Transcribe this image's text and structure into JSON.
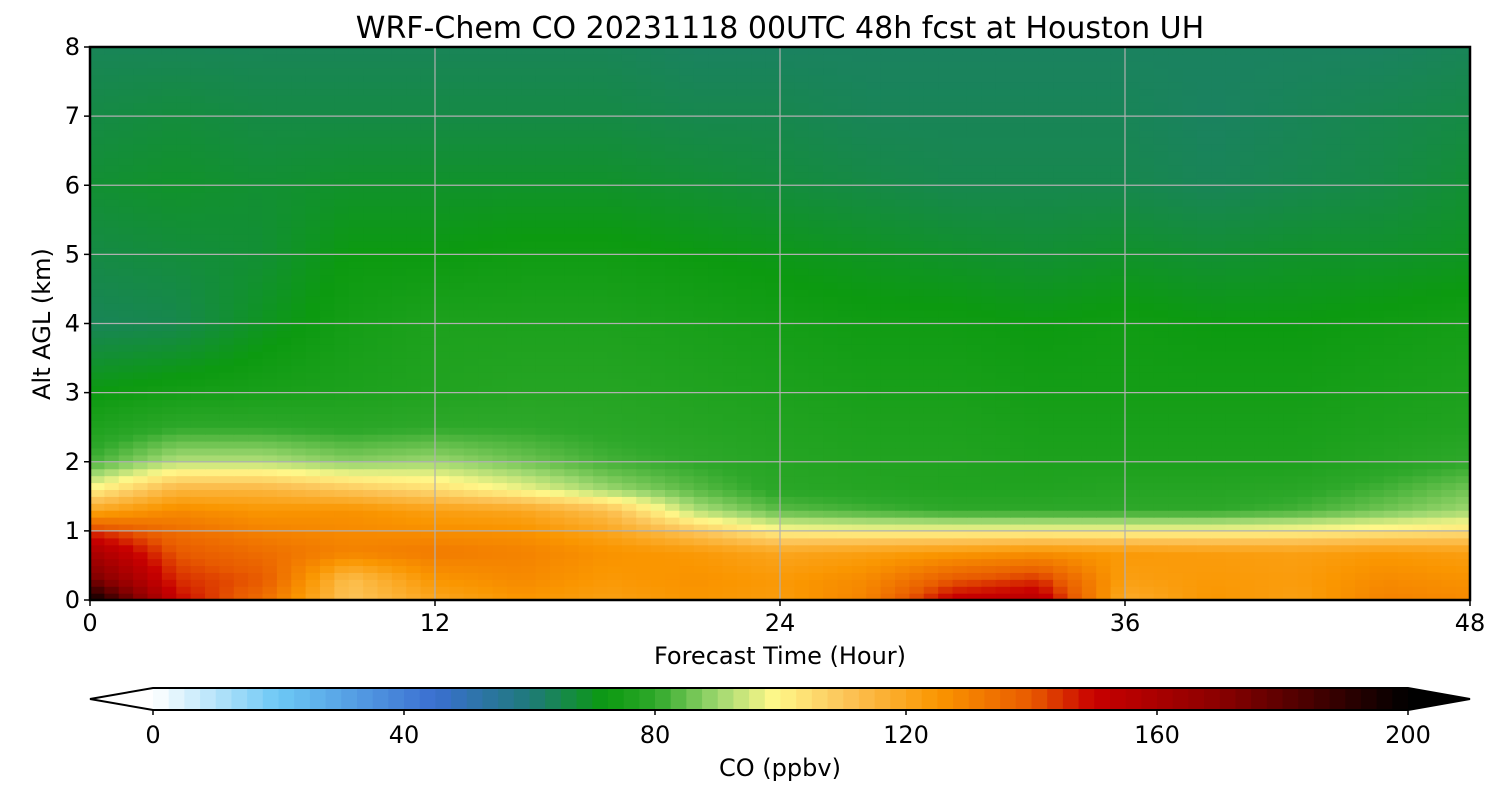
{
  "chart_data": {
    "type": "heatmap",
    "title": "WRF-Chem CO  20231118 00UTC 48h fcst at Houston UH",
    "xlabel": "Forecast Time (Hour)",
    "ylabel": "Alt AGL (km)",
    "xlim": [
      0,
      48
    ],
    "ylim": [
      0,
      8
    ],
    "xticks": [
      0,
      12,
      24,
      36,
      48
    ],
    "yticks": [
      0,
      1,
      2,
      3,
      4,
      5,
      6,
      7,
      8
    ],
    "grid": true,
    "x": [
      0,
      3,
      6,
      9,
      12,
      15,
      18,
      21,
      24,
      27,
      30,
      33,
      36,
      39,
      42,
      45,
      48
    ],
    "y": [
      0,
      0.3,
      0.7,
      1.0,
      1.3,
      1.6,
      2.0,
      2.5,
      3.0,
      4.0,
      5.0,
      6.0,
      7.0,
      8.0
    ],
    "z_ppbv": [
      [
        200,
        150,
        135,
        110,
        120,
        125,
        122,
        125,
        123,
        130,
        152,
        155,
        118,
        125,
        122,
        130,
        128
      ],
      [
        175,
        145,
        140,
        112,
        125,
        128,
        124,
        126,
        124,
        128,
        140,
        145,
        122,
        124,
        123,
        128,
        126
      ],
      [
        160,
        140,
        135,
        130,
        132,
        130,
        126,
        124,
        120,
        122,
        124,
        126,
        124,
        123,
        122,
        124,
        122
      ],
      [
        145,
        135,
        130,
        128,
        127,
        126,
        120,
        110,
        100,
        99,
        99,
        99,
        99,
        99,
        100,
        102,
        104
      ],
      [
        120,
        128,
        125,
        126,
        122,
        120,
        112,
        92,
        84,
        82,
        80,
        80,
        80,
        80,
        82,
        86,
        90
      ],
      [
        100,
        115,
        115,
        110,
        105,
        98,
        90,
        84,
        79,
        78,
        77,
        77,
        78,
        78,
        79,
        82,
        86
      ],
      [
        82,
        92,
        92,
        88,
        90,
        86,
        82,
        80,
        78,
        77,
        77,
        76,
        76,
        76,
        76,
        78,
        80
      ],
      [
        76,
        80,
        80,
        79,
        80,
        80,
        79,
        78,
        77,
        76,
        76,
        75,
        75,
        75,
        75,
        76,
        77
      ],
      [
        72,
        74,
        75,
        76,
        77,
        78,
        78,
        77,
        76,
        75,
        75,
        74,
        74,
        74,
        74,
        75,
        76
      ],
      [
        64,
        65,
        70,
        74,
        76,
        76,
        76,
        75,
        74,
        73,
        73,
        72,
        73,
        72,
        72,
        73,
        74
      ],
      [
        66,
        67,
        68,
        72,
        72,
        73,
        73,
        72,
        71,
        70,
        69,
        68,
        69,
        68,
        69,
        69,
        70
      ],
      [
        68,
        69,
        68,
        69,
        69,
        69,
        69,
        68,
        67,
        66,
        65,
        65,
        65,
        64,
        65,
        66,
        68
      ],
      [
        66,
        67,
        66,
        66,
        66,
        66,
        66,
        65,
        65,
        64,
        64,
        64,
        64,
        63,
        64,
        65,
        66
      ],
      [
        64,
        64,
        64,
        64,
        64,
        64,
        64,
        63,
        63,
        63,
        63,
        63,
        63,
        63,
        63,
        63,
        64
      ]
    ],
    "colorbar": {
      "label": "CO  (ppbv)",
      "min": 0,
      "max": 200,
      "ticks": [
        0,
        40,
        80,
        120,
        160,
        200
      ],
      "extend": "both",
      "stops": [
        {
          "v": 0,
          "c": "#ffffff"
        },
        {
          "v": 20,
          "c": "#6cc8f5"
        },
        {
          "v": 45,
          "c": "#3a6fd0"
        },
        {
          "v": 60,
          "c": "#1f7a7a"
        },
        {
          "v": 72,
          "c": "#0c9a10"
        },
        {
          "v": 80,
          "c": "#2ea82a"
        },
        {
          "v": 90,
          "c": "#9fd870"
        },
        {
          "v": 99,
          "c": "#fff88a"
        },
        {
          "v": 110,
          "c": "#fcc55a"
        },
        {
          "v": 125,
          "c": "#fa9600"
        },
        {
          "v": 140,
          "c": "#e85a00"
        },
        {
          "v": 150,
          "c": "#c80000"
        },
        {
          "v": 170,
          "c": "#8a0000"
        },
        {
          "v": 200,
          "c": "#000000"
        }
      ]
    }
  }
}
